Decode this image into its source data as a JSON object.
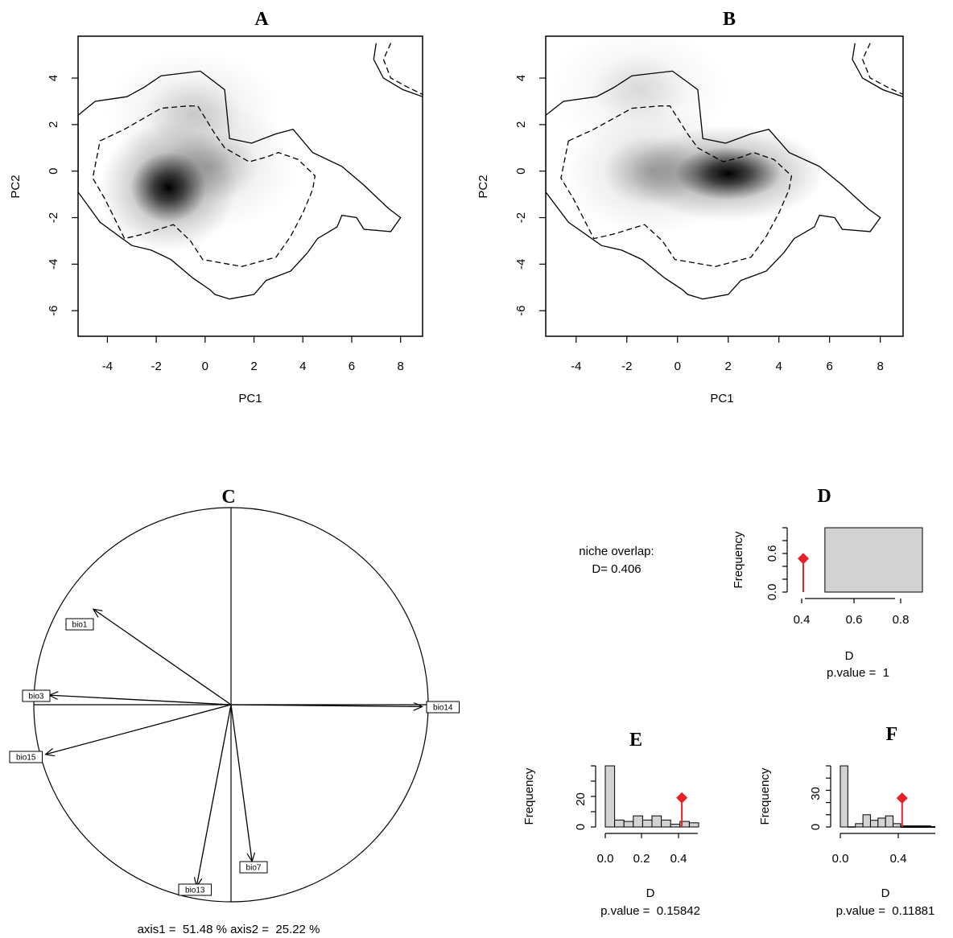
{
  "chart_data": [
    {
      "panel": "A",
      "type": "heatmap",
      "title": "A",
      "xlabel": "PC1",
      "ylabel": "PC2",
      "xlim": [
        -5.2,
        8.9
      ],
      "ylim": [
        -7.1,
        5.8
      ],
      "xticks": [
        -4,
        -2,
        0,
        2,
        4,
        6,
        8
      ],
      "yticks": [
        -6,
        -4,
        -2,
        0,
        2,
        4
      ],
      "density_peaks": [
        {
          "x": -1.5,
          "y": -0.7,
          "weight": 1.0
        },
        {
          "x": 0.2,
          "y": 0.2,
          "weight": 0.3
        },
        {
          "x": -0.5,
          "y": 2.5,
          "weight": 0.2
        }
      ],
      "contours": [
        {
          "style": "solid",
          "points": [
            [
              -5.2,
              2.4
            ],
            [
              -4.5,
              3.0
            ],
            [
              -3.2,
              3.2
            ],
            [
              -2.5,
              3.6
            ],
            [
              -1.8,
              4.1
            ],
            [
              -0.2,
              4.3
            ],
            [
              0.3,
              3.9
            ],
            [
              0.8,
              3.5
            ],
            [
              1.0,
              1.4
            ],
            [
              1.9,
              1.2
            ],
            [
              2.9,
              1.6
            ],
            [
              3.6,
              1.8
            ],
            [
              4.4,
              0.8
            ],
            [
              5.6,
              0.2
            ],
            [
              6.5,
              -0.6
            ],
            [
              7.5,
              -1.6
            ],
            [
              8.0,
              -2.0
            ],
            [
              7.6,
              -2.6
            ],
            [
              6.5,
              -2.5
            ],
            [
              6.2,
              -2.0
            ],
            [
              5.6,
              -1.9
            ],
            [
              5.4,
              -2.4
            ],
            [
              4.6,
              -2.9
            ],
            [
              4.2,
              -3.5
            ],
            [
              3.5,
              -4.3
            ],
            [
              2.5,
              -4.7
            ],
            [
              2.0,
              -5.3
            ],
            [
              1.0,
              -5.5
            ],
            [
              0.4,
              -5.3
            ],
            [
              0.2,
              -5.1
            ],
            [
              -0.5,
              -4.6
            ],
            [
              -1.4,
              -3.8
            ],
            [
              -2.2,
              -3.4
            ],
            [
              -3.0,
              -3.2
            ],
            [
              -4.3,
              -2.2
            ],
            [
              -5.2,
              -0.9
            ]
          ]
        },
        {
          "style": "dashed",
          "points": [
            [
              -4.3,
              1.3
            ],
            [
              -3.3,
              1.8
            ],
            [
              -2.8,
              2.1
            ],
            [
              -1.8,
              2.7
            ],
            [
              -0.7,
              2.8
            ],
            [
              -0.3,
              2.8
            ],
            [
              0.4,
              1.6
            ],
            [
              0.8,
              1.0
            ],
            [
              1.8,
              0.4
            ],
            [
              2.5,
              0.6
            ],
            [
              3.0,
              0.8
            ],
            [
              3.8,
              0.5
            ],
            [
              4.5,
              -0.2
            ],
            [
              4.4,
              -0.8
            ],
            [
              4.0,
              -1.8
            ],
            [
              3.5,
              -2.8
            ],
            [
              2.9,
              -3.7
            ],
            [
              1.5,
              -4.1
            ],
            [
              -0.1,
              -3.8
            ],
            [
              -0.6,
              -3.0
            ],
            [
              -1.3,
              -2.3
            ],
            [
              -1.9,
              -2.5
            ],
            [
              -2.5,
              -2.7
            ],
            [
              -3.3,
              -2.9
            ],
            [
              -4.1,
              -1.2
            ],
            [
              -4.6,
              -0.3
            ]
          ]
        },
        {
          "style": "solid",
          "points": [
            [
              7.0,
              5.5
            ],
            [
              6.9,
              4.8
            ],
            [
              7.3,
              4.0
            ],
            [
              8.1,
              3.5
            ],
            [
              8.9,
              3.2
            ]
          ]
        },
        {
          "style": "dashed",
          "points": [
            [
              7.6,
              5.5
            ],
            [
              7.3,
              4.8
            ],
            [
              7.6,
              4.0
            ],
            [
              8.3,
              3.6
            ],
            [
              8.9,
              3.3
            ]
          ]
        }
      ]
    },
    {
      "panel": "B",
      "type": "heatmap",
      "title": "B",
      "xlabel": "PC1",
      "ylabel": "PC2",
      "xlim": [
        -5.2,
        8.9
      ],
      "ylim": [
        -7.1,
        5.8
      ],
      "xticks": [
        -4,
        -2,
        0,
        2,
        4,
        6,
        8
      ],
      "yticks": [
        -6,
        -4,
        -2,
        0,
        2,
        4
      ],
      "density_peaks": [
        {
          "x": 2.0,
          "y": -0.1,
          "weight": 1.0
        },
        {
          "x": -1.0,
          "y": 0.0,
          "weight": 0.35
        },
        {
          "x": -1.5,
          "y": 3.5,
          "weight": 0.15
        }
      ],
      "contours": [
        {
          "style": "solid",
          "points": [
            [
              -5.2,
              2.4
            ],
            [
              -4.5,
              3.0
            ],
            [
              -3.2,
              3.2
            ],
            [
              -2.5,
              3.6
            ],
            [
              -1.8,
              4.1
            ],
            [
              -0.2,
              4.3
            ],
            [
              0.3,
              3.9
            ],
            [
              0.8,
              3.5
            ],
            [
              1.0,
              1.4
            ],
            [
              1.9,
              1.2
            ],
            [
              2.9,
              1.6
            ],
            [
              3.6,
              1.8
            ],
            [
              4.4,
              0.8
            ],
            [
              5.6,
              0.2
            ],
            [
              6.5,
              -0.6
            ],
            [
              7.5,
              -1.6
            ],
            [
              8.0,
              -2.0
            ],
            [
              7.6,
              -2.6
            ],
            [
              6.5,
              -2.5
            ],
            [
              6.2,
              -2.0
            ],
            [
              5.6,
              -1.9
            ],
            [
              5.4,
              -2.4
            ],
            [
              4.6,
              -2.9
            ],
            [
              4.2,
              -3.5
            ],
            [
              3.5,
              -4.3
            ],
            [
              2.5,
              -4.7
            ],
            [
              2.0,
              -5.3
            ],
            [
              1.0,
              -5.5
            ],
            [
              0.4,
              -5.3
            ],
            [
              0.2,
              -5.1
            ],
            [
              -0.5,
              -4.6
            ],
            [
              -1.4,
              -3.8
            ],
            [
              -2.2,
              -3.4
            ],
            [
              -3.0,
              -3.2
            ],
            [
              -4.3,
              -2.2
            ],
            [
              -5.2,
              -0.9
            ]
          ]
        },
        {
          "style": "dashed",
          "points": [
            [
              -4.3,
              1.3
            ],
            [
              -3.3,
              1.8
            ],
            [
              -2.8,
              2.1
            ],
            [
              -1.8,
              2.7
            ],
            [
              -0.7,
              2.8
            ],
            [
              -0.3,
              2.8
            ],
            [
              0.4,
              1.6
            ],
            [
              0.8,
              1.0
            ],
            [
              1.8,
              0.4
            ],
            [
              2.5,
              0.6
            ],
            [
              3.0,
              0.8
            ],
            [
              3.8,
              0.5
            ],
            [
              4.5,
              -0.2
            ],
            [
              4.4,
              -0.8
            ],
            [
              4.0,
              -1.8
            ],
            [
              3.5,
              -2.8
            ],
            [
              2.9,
              -3.7
            ],
            [
              1.5,
              -4.1
            ],
            [
              -0.1,
              -3.8
            ],
            [
              -0.6,
              -3.0
            ],
            [
              -1.3,
              -2.3
            ],
            [
              -1.9,
              -2.5
            ],
            [
              -2.5,
              -2.7
            ],
            [
              -3.3,
              -2.9
            ],
            [
              -4.1,
              -1.2
            ],
            [
              -4.6,
              -0.3
            ]
          ]
        },
        {
          "style": "solid",
          "points": [
            [
              7.0,
              5.5
            ],
            [
              6.9,
              4.8
            ],
            [
              7.3,
              4.0
            ],
            [
              8.1,
              3.5
            ],
            [
              8.9,
              3.2
            ]
          ]
        },
        {
          "style": "dashed",
          "points": [
            [
              7.6,
              5.5
            ],
            [
              7.3,
              4.8
            ],
            [
              7.6,
              4.0
            ],
            [
              8.3,
              3.6
            ],
            [
              8.9,
              3.3
            ]
          ]
        }
      ]
    },
    {
      "panel": "C",
      "type": "scatter",
      "subtype": "correlation-circle",
      "title": "C",
      "caption": "axis1 =  51.48 % axis2 =  25.22 %",
      "vectors": [
        {
          "name": "bio1",
          "x": -0.72,
          "y": 0.5
        },
        {
          "name": "bio3",
          "x": -0.95,
          "y": 0.05
        },
        {
          "name": "bio14",
          "x": 1.0,
          "y": -0.01
        },
        {
          "name": "bio15",
          "x": -0.97,
          "y": -0.26
        },
        {
          "name": "bio13",
          "x": -0.18,
          "y": -0.95
        },
        {
          "name": "bio7",
          "x": 0.11,
          "y": -0.82
        }
      ]
    },
    {
      "panel": "D",
      "type": "bar",
      "title": "D",
      "xlabel": "D",
      "ylabel": "Frequency",
      "pvalue_label": "p.value =  1",
      "observed": 0.406,
      "xlim": [
        0.4,
        0.92
      ],
      "ylim": [
        0,
        1.0
      ],
      "xticks": [
        "0.4",
        "0.6",
        "0.8"
      ],
      "yticks": [
        "0.0",
        "0.6"
      ],
      "bins": [
        {
          "x0": 0.5,
          "x1": 0.92,
          "count": 1.0
        }
      ],
      "marker_y": 0.52
    },
    {
      "panel": "E",
      "type": "bar",
      "title": "E",
      "xlabel": "D",
      "ylabel": "Frequency",
      "pvalue_label": "p.value =  0.15842",
      "observed": 0.41,
      "xlim": [
        0.0,
        0.5
      ],
      "ylim": [
        0,
        44
      ],
      "xticks": [
        "0.0",
        "0.2",
        "0.4"
      ],
      "yticks": [
        "0",
        "20"
      ],
      "bins": [
        {
          "x0": 0.0,
          "x1": 0.05,
          "count": 44
        },
        {
          "x0": 0.05,
          "x1": 0.1,
          "count": 5
        },
        {
          "x0": 0.1,
          "x1": 0.15,
          "count": 4
        },
        {
          "x0": 0.15,
          "x1": 0.2,
          "count": 8
        },
        {
          "x0": 0.2,
          "x1": 0.25,
          "count": 5
        },
        {
          "x0": 0.25,
          "x1": 0.3,
          "count": 8
        },
        {
          "x0": 0.3,
          "x1": 0.35,
          "count": 5
        },
        {
          "x0": 0.35,
          "x1": 0.4,
          "count": 2
        },
        {
          "x0": 0.4,
          "x1": 0.45,
          "count": 4
        },
        {
          "x0": 0.45,
          "x1": 0.5,
          "count": 3
        }
      ],
      "marker_y": 21
    },
    {
      "panel": "F",
      "type": "bar",
      "title": "F",
      "xlabel": "D",
      "ylabel": "Frequency",
      "pvalue_label": "p.value =  0.11881",
      "observed": 0.41,
      "xlim": [
        0.0,
        0.63
      ],
      "ylim": [
        0,
        55
      ],
      "xticks": [
        "0.0",
        "0.4"
      ],
      "yticks": [
        "0",
        "30"
      ],
      "bins": [
        {
          "x0": 0.0,
          "x1": 0.05,
          "count": 55
        },
        {
          "x0": 0.05,
          "x1": 0.1,
          "count": 0
        },
        {
          "x0": 0.1,
          "x1": 0.15,
          "count": 3
        },
        {
          "x0": 0.15,
          "x1": 0.2,
          "count": 11
        },
        {
          "x0": 0.2,
          "x1": 0.25,
          "count": 6
        },
        {
          "x0": 0.25,
          "x1": 0.3,
          "count": 8
        },
        {
          "x0": 0.3,
          "x1": 0.35,
          "count": 10
        },
        {
          "x0": 0.35,
          "x1": 0.4,
          "count": 3
        },
        {
          "x0": 0.4,
          "x1": 0.45,
          "count": 1
        },
        {
          "x0": 0.45,
          "x1": 0.5,
          "count": 1
        },
        {
          "x0": 0.5,
          "x1": 0.55,
          "count": 1
        },
        {
          "x0": 0.55,
          "x1": 0.6,
          "count": 1
        }
      ],
      "marker_y": 26
    }
  ],
  "niche_text": {
    "line1": "niche overlap:",
    "line2": "D= 0.406"
  },
  "colors": {
    "marker": "#e8202a",
    "bar_fill": "#d3d3d3",
    "density": "#000000"
  }
}
